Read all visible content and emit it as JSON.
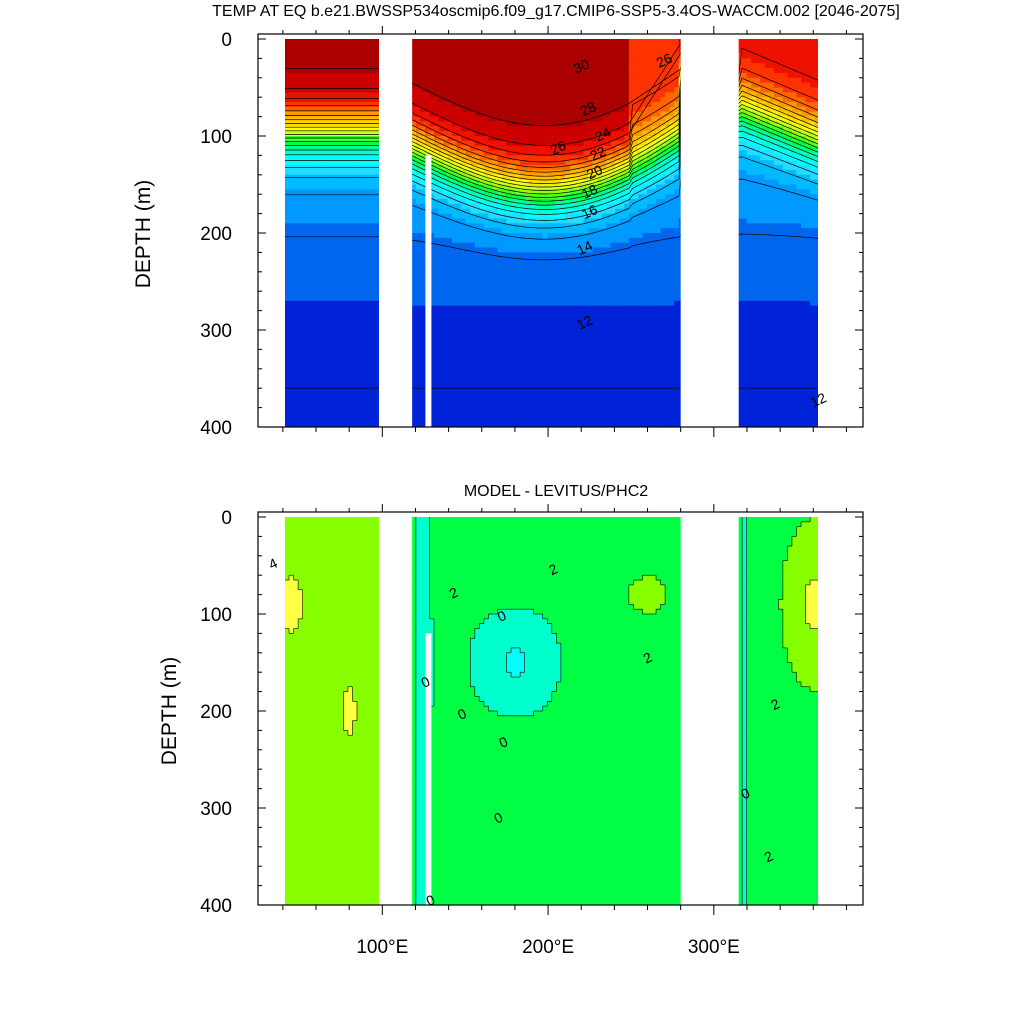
{
  "colors": {
    "warm_palette": [
      "#0022d8",
      "#0066ee",
      "#0099ff",
      "#00bbff",
      "#22ddff",
      "#00ffff",
      "#00ffcc",
      "#00ff99",
      "#00ff44",
      "#44ff22",
      "#99ff00",
      "#ccff22",
      "#ffff00",
      "#ffdd00",
      "#ffbb00",
      "#ff9900",
      "#ff6600",
      "#ff3300",
      "#ee1100",
      "#cc0000",
      "#aa0000"
    ],
    "diff_palette": [
      "#00ffff",
      "#00ffcc",
      "#00ff44",
      "#88ff00",
      "#ffff44",
      "#ffbb44",
      "#ff9933"
    ],
    "landmask": "#ffffff"
  },
  "chart_data": [
    {
      "type": "contour",
      "title": "TEMP AT EQ b.e21.BWSSP534oscmip6.f09_g17.CMIP6-SSP5-3.4OS-WACCM.002 [2046-2075]",
      "xlabel": "",
      "ylabel": "DEPTH (m)",
      "ylim": [
        0,
        400
      ],
      "y_reversed": true,
      "y_ticks": [
        "0",
        "100",
        "200",
        "300",
        "400"
      ],
      "y_tick_values": [
        0,
        100,
        200,
        300,
        400
      ],
      "x_range_deg": [
        25,
        390
      ],
      "x_ticks": [
        "100°E",
        "200°E",
        "300°E"
      ],
      "x_tick_values": [
        100,
        200,
        300
      ],
      "contour_levels": [
        2,
        4,
        6,
        8,
        10,
        11,
        12,
        13,
        14,
        15,
        16,
        17,
        18,
        19,
        20,
        21,
        22,
        23,
        24,
        25,
        26,
        27,
        28,
        29,
        30
      ],
      "land_gaps_deg": [
        [
          98,
          118
        ],
        [
          280,
          315
        ]
      ],
      "contour_labels": [
        {
          "text": "30",
          "lon": 220,
          "depth": 28
        },
        {
          "text": "26",
          "lon": 270,
          "depth": 22
        },
        {
          "text": "28",
          "lon": 224,
          "depth": 72
        },
        {
          "text": "26",
          "lon": 206,
          "depth": 112
        },
        {
          "text": "24",
          "lon": 233,
          "depth": 98
        },
        {
          "text": "22",
          "lon": 230,
          "depth": 118
        },
        {
          "text": "20",
          "lon": 228,
          "depth": 137
        },
        {
          "text": "18",
          "lon": 225,
          "depth": 157
        },
        {
          "text": "16",
          "lon": 225,
          "depth": 178
        },
        {
          "text": "14",
          "lon": 222,
          "depth": 215
        },
        {
          "text": "12",
          "lon": 222,
          "depth": 292
        },
        {
          "text": "12",
          "lon": 363,
          "depth": 372
        }
      ]
    },
    {
      "type": "contour",
      "title": "MODEL - LEVITUS/PHC2",
      "xlabel": "",
      "ylabel": "DEPTH (m)",
      "ylim": [
        0,
        400
      ],
      "y_reversed": true,
      "y_ticks": [
        "0",
        "100",
        "200",
        "300",
        "400"
      ],
      "y_tick_values": [
        0,
        100,
        200,
        300,
        400
      ],
      "x_range_deg": [
        25,
        390
      ],
      "x_ticks": [
        "100°E",
        "200°E",
        "300°E"
      ],
      "x_tick_values": [
        100,
        200,
        300
      ],
      "contour_levels": [
        -2,
        -1,
        0,
        1,
        2,
        3,
        4,
        5
      ],
      "land_gaps_deg": [
        [
          98,
          118
        ],
        [
          280,
          315
        ]
      ],
      "contour_labels": [
        {
          "text": "4",
          "lon": 34,
          "depth": 48
        },
        {
          "text": "2",
          "lon": 143,
          "depth": 78
        },
        {
          "text": "2",
          "lon": 203,
          "depth": 54
        },
        {
          "text": "0",
          "lon": 172,
          "depth": 102
        },
        {
          "text": "2",
          "lon": 260,
          "depth": 145
        },
        {
          "text": "0",
          "lon": 126,
          "depth": 170
        },
        {
          "text": "0",
          "lon": 148,
          "depth": 203
        },
        {
          "text": "0",
          "lon": 173,
          "depth": 232
        },
        {
          "text": "2",
          "lon": 337,
          "depth": 193
        },
        {
          "text": "0",
          "lon": 319,
          "depth": 285
        },
        {
          "text": "0",
          "lon": 170,
          "depth": 310
        },
        {
          "text": "2",
          "lon": 333,
          "depth": 350
        },
        {
          "text": "0",
          "lon": 129,
          "depth": 395
        }
      ]
    }
  ]
}
